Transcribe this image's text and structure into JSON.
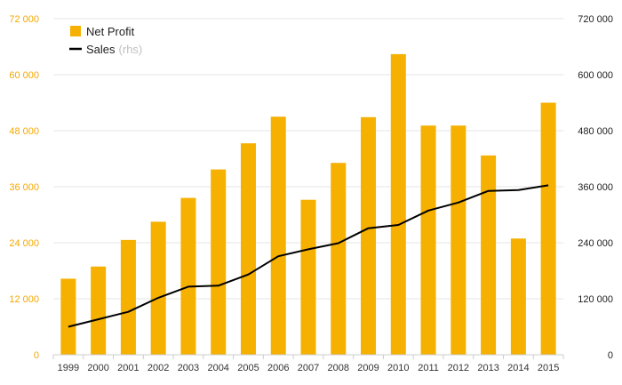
{
  "chart_data": {
    "type": "bar",
    "categories": [
      "1999",
      "2000",
      "2001",
      "2002",
      "2003",
      "2004",
      "2005",
      "2006",
      "2007",
      "2008",
      "2009",
      "2010",
      "2011",
      "2012",
      "2013",
      "2014",
      "2015"
    ],
    "series": [
      {
        "name": "Net Profit",
        "type": "bar",
        "axis": "left",
        "color": "#f5b000",
        "values": [
          16300,
          18900,
          24600,
          28500,
          33600,
          39700,
          45300,
          51000,
          33200,
          41100,
          50900,
          64400,
          49100,
          49100,
          42700,
          24900,
          54000
        ]
      },
      {
        "name": "Sales",
        "axis_note": "(rhs)",
        "type": "line",
        "axis": "right",
        "color": "#000000",
        "values": [
          60000,
          76000,
          92000,
          122000,
          146000,
          148000,
          172000,
          211000,
          226000,
          239000,
          271000,
          278000,
          309000,
          326000,
          351000,
          353000,
          363000
        ]
      }
    ],
    "y_left": {
      "range": [
        0,
        72000
      ],
      "ticks": [
        0,
        12000,
        24000,
        36000,
        48000,
        60000,
        72000
      ],
      "tick_labels": [
        "0",
        "12 000",
        "24 000",
        "36 000",
        "48 000",
        "60 000",
        "72 000"
      ]
    },
    "y_right": {
      "range": [
        0,
        720000
      ],
      "ticks": [
        0,
        120000,
        240000,
        360000,
        480000,
        600000,
        720000
      ],
      "tick_labels": [
        "0",
        "120 000",
        "240 000",
        "360 000",
        "480 000",
        "600 000",
        "720 000"
      ]
    },
    "grid": true,
    "legend_position": "top-left"
  },
  "legend": {
    "bar_label": "Net Profit",
    "line_label": "Sales",
    "line_note": "(rhs)"
  }
}
